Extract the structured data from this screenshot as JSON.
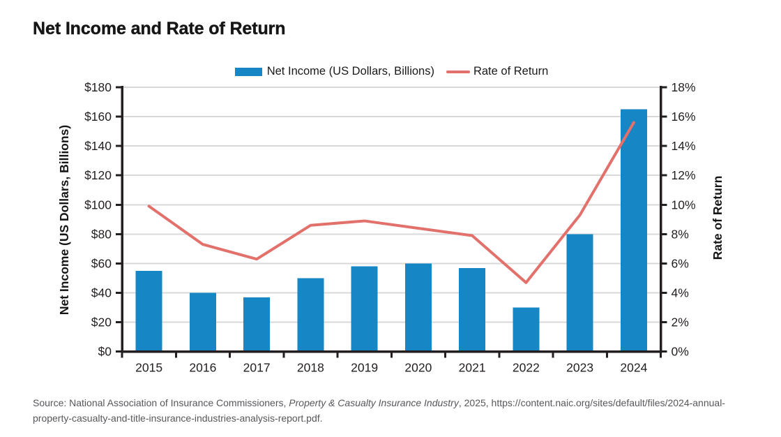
{
  "title": "Net Income and Rate of Return",
  "legend": {
    "net_income_label": "Net Income (US Dollars, Billions)",
    "rate_of_return_label": "Rate of Return"
  },
  "colors": {
    "bar": "#1786c5",
    "line": "#e2706b",
    "axis": "#231f20",
    "grid": "#d8d8d8",
    "tick_text": "#231f20",
    "title_text": "#161616",
    "source_text": "#56575b"
  },
  "chart_data": {
    "type": "bar+line",
    "categories": [
      "2015",
      "2016",
      "2017",
      "2018",
      "2019",
      "2020",
      "2021",
      "2022",
      "2023",
      "2024"
    ],
    "series": [
      {
        "name": "Net Income (US Dollars, Billions)",
        "type": "bar",
        "axis": "left",
        "values": [
          55,
          40,
          37,
          50,
          58,
          60,
          57,
          30,
          80,
          165
        ]
      },
      {
        "name": "Rate of Return",
        "type": "line",
        "axis": "right",
        "values": [
          9.9,
          7.3,
          6.3,
          8.6,
          8.9,
          8.4,
          7.9,
          4.7,
          9.3,
          15.6
        ]
      }
    ],
    "left_axis": {
      "label": "Net Income (US Dollars, Billions)",
      "min": 0,
      "max": 180,
      "step": 20,
      "tick_labels": [
        "$0",
        "$20",
        "$40",
        "$60",
        "$80",
        "$100",
        "$120",
        "$140",
        "$160",
        "$180"
      ]
    },
    "right_axis": {
      "label": "Rate of Return",
      "min": 0,
      "max": 18,
      "step": 2,
      "tick_labels": [
        "0%",
        "2%",
        "4%",
        "6%",
        "8%",
        "10%",
        "12%",
        "14%",
        "16%",
        "18%"
      ]
    },
    "grid": true,
    "legend_position": "top"
  },
  "source": {
    "line1_prefix": "Source: National Association of Insurance Commissioners, ",
    "line1_italic": "Property & Casualty Insurance Industry",
    "line1_suffix": ", 2025, https://content.naic.org/sites/default/files/2024-annual-",
    "line2": "property-casualty-and-title-insurance-industries-analysis-report.pdf."
  }
}
